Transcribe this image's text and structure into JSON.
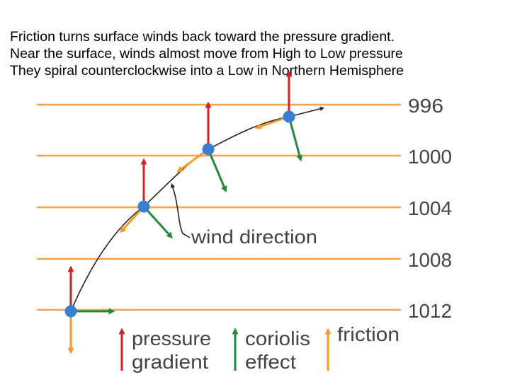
{
  "caption": {
    "line1": "Friction turns surface winds back toward the pressure gradient.",
    "line2": "Near the surface, winds almost move from High to Low pressure",
    "line3": "They spiral counterclockwise into a Low in Northern Hemisphere"
  },
  "isobars": [
    "996",
    "1000",
    "1004",
    "1008",
    "1012"
  ],
  "annotation": "wind direction",
  "legend": {
    "pressure_gradient": [
      "pressure",
      "gradient"
    ],
    "coriolis": [
      "coriolis",
      "effect"
    ],
    "friction": "friction"
  },
  "colors": {
    "isobar": "#f6a54a",
    "pressure_gradient": "#d42020",
    "coriolis": "#1f8a3a",
    "friction": "#f39a2c",
    "parcel": "#3a7fd0",
    "wind_path": "#222222",
    "label": "#444444"
  }
}
